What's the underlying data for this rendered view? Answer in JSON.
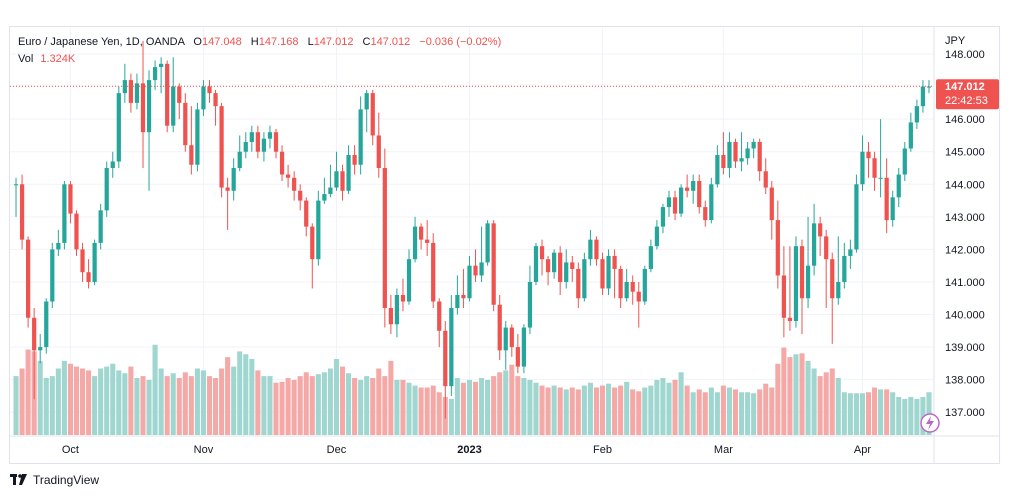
{
  "legend": {
    "symbol": "Euro / Japanese Yen, 1D, OANDA",
    "o_label": "O",
    "o": "147.048",
    "h_label": "H",
    "h": "147.168",
    "l_label": "L",
    "l": "147.012",
    "c_label": "C",
    "c": "147.012",
    "change": "−0.036 (−0.02%)",
    "vol_label": "Vol",
    "vol": "1.324K"
  },
  "price_tag": {
    "price": "147.012",
    "countdown": "22:42:53"
  },
  "footer": {
    "brand": "TradingView"
  },
  "colors": {
    "up": "#26a69a",
    "down": "#ef5350",
    "up_vol": "#9fd6cf",
    "down_vol": "#f5a9a7",
    "grid": "#f0f3fa"
  },
  "chart_data": {
    "type": "candlestick",
    "currency": "JPY",
    "ylim": [
      136.3,
      148.8
    ],
    "y_ticks": [
      "137.000",
      "138.000",
      "139.000",
      "140.000",
      "141.000",
      "142.000",
      "143.000",
      "144.000",
      "145.000",
      "146.000",
      "147.000",
      "148.000"
    ],
    "x_ticks": [
      {
        "label": "Oct",
        "index": 9
      },
      {
        "label": "Nov",
        "index": 31
      },
      {
        "label": "Dec",
        "index": 53
      },
      {
        "label": "2023",
        "index": 75,
        "bold": true
      },
      {
        "label": "Feb",
        "index": 97
      },
      {
        "label": "Mar",
        "index": 117
      },
      {
        "label": "Apr",
        "index": 140
      }
    ],
    "last_price": 147.012,
    "candles": [
      [
        144.0,
        144.0,
        144.2,
        143.0
      ],
      [
        144.0,
        142.3,
        144.3,
        142.0
      ],
      [
        142.3,
        139.9,
        142.4,
        139.6
      ],
      [
        139.9,
        138.9,
        140.2,
        137.4
      ],
      [
        138.9,
        139.0,
        139.4,
        138.5
      ],
      [
        139.0,
        140.4,
        140.5,
        138.8
      ],
      [
        140.4,
        142.0,
        142.2,
        140.2
      ],
      [
        142.0,
        142.2,
        142.6,
        141.8
      ],
      [
        142.2,
        144.0,
        144.1,
        142.0
      ],
      [
        144.0,
        143.1,
        144.1,
        142.8
      ],
      [
        143.1,
        142.0,
        143.2,
        141.8
      ],
      [
        142.0,
        141.3,
        142.2,
        141.0
      ],
      [
        141.3,
        141.0,
        141.7,
        140.8
      ],
      [
        141.0,
        142.2,
        142.3,
        140.9
      ],
      [
        142.2,
        143.2,
        143.4,
        142.0
      ],
      [
        143.2,
        144.5,
        144.7,
        143.0
      ],
      [
        144.5,
        144.7,
        145.0,
        144.2
      ],
      [
        144.7,
        146.8,
        147.0,
        144.5
      ],
      [
        146.8,
        147.2,
        147.7,
        146.5
      ],
      [
        147.2,
        146.5,
        147.4,
        146.2
      ],
      [
        146.5,
        147.1,
        147.4,
        146.3
      ],
      [
        147.1,
        145.6,
        148.4,
        144.5
      ],
      [
        145.6,
        147.2,
        147.5,
        143.8
      ],
      [
        147.2,
        147.6,
        147.8,
        146.9
      ],
      [
        147.6,
        147.7,
        147.9,
        146.8
      ],
      [
        147.7,
        145.8,
        147.8,
        145.6
      ],
      [
        145.8,
        147.0,
        147.9,
        145.6
      ],
      [
        147.0,
        146.5,
        147.1,
        146.0
      ],
      [
        146.5,
        145.2,
        146.8,
        145.0
      ],
      [
        145.2,
        144.6,
        146.4,
        144.3
      ],
      [
        144.6,
        146.3,
        146.5,
        144.4
      ],
      [
        146.3,
        147.0,
        147.2,
        146.1
      ],
      [
        147.0,
        146.8,
        147.2,
        146.5
      ],
      [
        146.8,
        146.4,
        146.9,
        145.8
      ],
      [
        146.4,
        143.9,
        146.5,
        143.6
      ],
      [
        143.9,
        143.8,
        144.2,
        142.6
      ],
      [
        143.8,
        144.5,
        144.8,
        143.5
      ],
      [
        144.5,
        145.0,
        145.5,
        144.4
      ],
      [
        145.0,
        145.3,
        145.6,
        144.8
      ],
      [
        145.3,
        145.6,
        145.8,
        145.0
      ],
      [
        145.6,
        145.0,
        145.8,
        144.8
      ],
      [
        145.0,
        145.4,
        145.6,
        144.7
      ],
      [
        145.4,
        145.6,
        145.8,
        145.1
      ],
      [
        145.6,
        145.0,
        145.7,
        144.8
      ],
      [
        145.0,
        144.3,
        145.2,
        144.1
      ],
      [
        144.3,
        144.2,
        144.6,
        143.9
      ],
      [
        144.2,
        143.8,
        144.4,
        143.5
      ],
      [
        143.8,
        143.5,
        144.0,
        143.2
      ],
      [
        143.5,
        142.7,
        143.6,
        142.4
      ],
      [
        142.7,
        141.7,
        142.8,
        140.8
      ],
      [
        141.7,
        143.5,
        143.8,
        141.5
      ],
      [
        143.5,
        143.7,
        144.2,
        143.4
      ],
      [
        143.7,
        143.9,
        144.6,
        143.6
      ],
      [
        143.9,
        144.4,
        145.0,
        143.8
      ],
      [
        144.4,
        143.8,
        144.6,
        143.5
      ],
      [
        143.8,
        144.9,
        145.2,
        143.7
      ],
      [
        144.9,
        144.6,
        145.2,
        144.3
      ],
      [
        144.6,
        146.3,
        146.7,
        144.3
      ],
      [
        146.3,
        146.8,
        146.9,
        145.6
      ],
      [
        146.8,
        145.5,
        146.9,
        145.2
      ],
      [
        145.5,
        144.5,
        146.2,
        144.2
      ],
      [
        144.5,
        140.2,
        145.1,
        139.6
      ],
      [
        140.2,
        139.7,
        140.6,
        139.4
      ],
      [
        139.7,
        140.6,
        140.8,
        139.3
      ],
      [
        140.6,
        140.4,
        141.1,
        140.1
      ],
      [
        140.4,
        141.7,
        142.0,
        140.3
      ],
      [
        141.7,
        142.7,
        143.0,
        141.6
      ],
      [
        142.7,
        142.3,
        142.8,
        142.0
      ],
      [
        142.3,
        142.2,
        142.9,
        141.8
      ],
      [
        142.2,
        140.4,
        142.5,
        140.2
      ],
      [
        140.4,
        139.5,
        140.5,
        139.0
      ],
      [
        139.5,
        137.8,
        139.8,
        136.8
      ],
      [
        137.8,
        140.2,
        140.6,
        137.5
      ],
      [
        140.2,
        140.6,
        141.2,
        140.0
      ],
      [
        140.6,
        140.5,
        141.4,
        140.2
      ],
      [
        140.5,
        141.5,
        141.8,
        140.4
      ],
      [
        141.5,
        141.2,
        142.0,
        141.0
      ],
      [
        141.2,
        141.6,
        142.7,
        141.0
      ],
      [
        141.6,
        142.8,
        142.9,
        141.5
      ],
      [
        142.8,
        140.3,
        142.9,
        140.1
      ],
      [
        140.3,
        138.9,
        140.6,
        138.6
      ],
      [
        138.9,
        139.6,
        139.8,
        138.3
      ],
      [
        139.6,
        139.0,
        139.7,
        138.7
      ],
      [
        139.0,
        138.4,
        139.4,
        138.2
      ],
      [
        138.4,
        139.6,
        139.7,
        138.2
      ],
      [
        139.6,
        141.0,
        141.5,
        139.4
      ],
      [
        141.0,
        142.1,
        142.2,
        140.9
      ],
      [
        142.1,
        141.7,
        142.3,
        141.2
      ],
      [
        141.7,
        141.3,
        141.8,
        140.9
      ],
      [
        141.3,
        141.9,
        142.0,
        141.1
      ],
      [
        141.9,
        141.0,
        142.1,
        140.6
      ],
      [
        141.0,
        141.6,
        142.0,
        140.8
      ],
      [
        141.6,
        141.4,
        141.8,
        141.0
      ],
      [
        141.4,
        140.5,
        141.6,
        140.2
      ],
      [
        140.5,
        141.7,
        141.9,
        140.4
      ],
      [
        141.7,
        142.3,
        142.6,
        141.5
      ],
      [
        142.3,
        141.7,
        142.4,
        141.5
      ],
      [
        141.7,
        140.8,
        141.9,
        140.6
      ],
      [
        140.8,
        141.8,
        142.0,
        140.6
      ],
      [
        141.8,
        141.4,
        142.0,
        140.5
      ],
      [
        141.4,
        140.5,
        141.5,
        140.2
      ],
      [
        140.5,
        141.0,
        141.4,
        140.4
      ],
      [
        141.0,
        140.7,
        141.2,
        140.3
      ],
      [
        140.7,
        140.4,
        141.0,
        139.6
      ],
      [
        140.4,
        141.4,
        141.5,
        140.3
      ],
      [
        141.4,
        142.1,
        142.3,
        141.3
      ],
      [
        142.1,
        142.7,
        142.9,
        142.0
      ],
      [
        142.7,
        143.3,
        143.4,
        142.5
      ],
      [
        143.3,
        143.6,
        143.8,
        143.0
      ],
      [
        143.6,
        143.1,
        143.8,
        142.9
      ],
      [
        143.1,
        143.9,
        144.0,
        143.0
      ],
      [
        143.9,
        143.8,
        144.3,
        143.6
      ],
      [
        143.8,
        144.1,
        144.3,
        143.4
      ],
      [
        144.1,
        143.3,
        144.3,
        143.1
      ],
      [
        143.3,
        142.9,
        143.5,
        142.7
      ],
      [
        142.9,
        144.0,
        144.2,
        142.8
      ],
      [
        144.0,
        144.9,
        145.2,
        143.9
      ],
      [
        144.9,
        144.5,
        145.6,
        144.3
      ],
      [
        144.5,
        145.3,
        145.6,
        144.2
      ],
      [
        145.3,
        144.7,
        145.4,
        144.5
      ],
      [
        144.7,
        144.8,
        145.6,
        144.4
      ],
      [
        144.8,
        145.1,
        145.3,
        144.6
      ],
      [
        145.1,
        145.3,
        145.4,
        144.8
      ],
      [
        145.3,
        144.4,
        145.4,
        144.1
      ],
      [
        144.4,
        143.9,
        144.8,
        143.7
      ],
      [
        143.9,
        142.9,
        144.1,
        142.3
      ],
      [
        142.9,
        141.2,
        143.5,
        140.8
      ],
      [
        141.2,
        139.9,
        142.1,
        139.3
      ],
      [
        139.9,
        139.8,
        142.1,
        139.5
      ],
      [
        139.8,
        142.1,
        142.4,
        139.6
      ],
      [
        142.1,
        140.5,
        142.3,
        139.4
      ],
      [
        140.5,
        141.5,
        143.0,
        140.2
      ],
      [
        141.5,
        142.8,
        143.4,
        141.2
      ],
      [
        142.8,
        142.4,
        143.0,
        141.8
      ],
      [
        142.4,
        141.7,
        142.6,
        140.2
      ],
      [
        141.7,
        140.5,
        141.9,
        139.1
      ],
      [
        140.5,
        141.0,
        142.4,
        140.3
      ],
      [
        141.0,
        141.8,
        142.2,
        140.8
      ],
      [
        141.8,
        142.0,
        142.3,
        141.4
      ],
      [
        142.0,
        144.0,
        144.3,
        141.9
      ],
      [
        144.0,
        145.0,
        145.5,
        143.8
      ],
      [
        145.0,
        144.8,
        145.3,
        144.2
      ],
      [
        144.8,
        144.2,
        145.0,
        143.8
      ],
      [
        144.2,
        144.2,
        146.0,
        143.6
      ],
      [
        144.2,
        142.9,
        144.8,
        142.5
      ],
      [
        142.9,
        143.6,
        143.8,
        142.7
      ],
      [
        143.6,
        144.3,
        144.5,
        143.3
      ],
      [
        144.3,
        145.1,
        145.3,
        144.1
      ],
      [
        145.1,
        145.9,
        146.2,
        145.0
      ],
      [
        145.9,
        146.4,
        146.6,
        145.7
      ],
      [
        146.4,
        147.0,
        147.2,
        146.2
      ],
      [
        147.0,
        147.0,
        147.2,
        146.8
      ]
    ],
    "volume_max": 1.0,
    "volumes": [
      0.62,
      0.7,
      0.9,
      0.88,
      0.78,
      0.6,
      0.62,
      0.7,
      0.78,
      0.75,
      0.72,
      0.7,
      0.68,
      0.62,
      0.7,
      0.72,
      0.75,
      0.68,
      0.65,
      0.72,
      0.6,
      0.62,
      0.58,
      0.95,
      0.7,
      0.62,
      0.65,
      0.6,
      0.66,
      0.62,
      0.7,
      0.68,
      0.62,
      0.6,
      0.7,
      0.82,
      0.72,
      0.88,
      0.85,
      0.8,
      0.68,
      0.62,
      0.62,
      0.55,
      0.56,
      0.6,
      0.58,
      0.62,
      0.66,
      0.62,
      0.64,
      0.66,
      0.7,
      0.8,
      0.72,
      0.65,
      0.6,
      0.58,
      0.62,
      0.6,
      0.7,
      0.62,
      0.78,
      0.58,
      0.58,
      0.55,
      0.52,
      0.5,
      0.5,
      0.52,
      0.45,
      0.4,
      0.38,
      0.6,
      0.55,
      0.58,
      0.56,
      0.6,
      0.58,
      0.62,
      0.66,
      0.68,
      0.74,
      0.62,
      0.6,
      0.58,
      0.55,
      0.52,
      0.5,
      0.52,
      0.5,
      0.48,
      0.5,
      0.48,
      0.52,
      0.55,
      0.5,
      0.52,
      0.54,
      0.5,
      0.52,
      0.56,
      0.48,
      0.46,
      0.5,
      0.52,
      0.58,
      0.6,
      0.55,
      0.58,
      0.66,
      0.52,
      0.45,
      0.48,
      0.45,
      0.5,
      0.45,
      0.52,
      0.5,
      0.48,
      0.45,
      0.45,
      0.44,
      0.48,
      0.54,
      0.5,
      0.75,
      0.92,
      0.82,
      0.85,
      0.86,
      0.78,
      0.7,
      0.62,
      0.66,
      0.7,
      0.6,
      0.45,
      0.44,
      0.44,
      0.44,
      0.45,
      0.5,
      0.48,
      0.48,
      0.45,
      0.4,
      0.38,
      0.4,
      0.38,
      0.4,
      0.45
    ]
  }
}
